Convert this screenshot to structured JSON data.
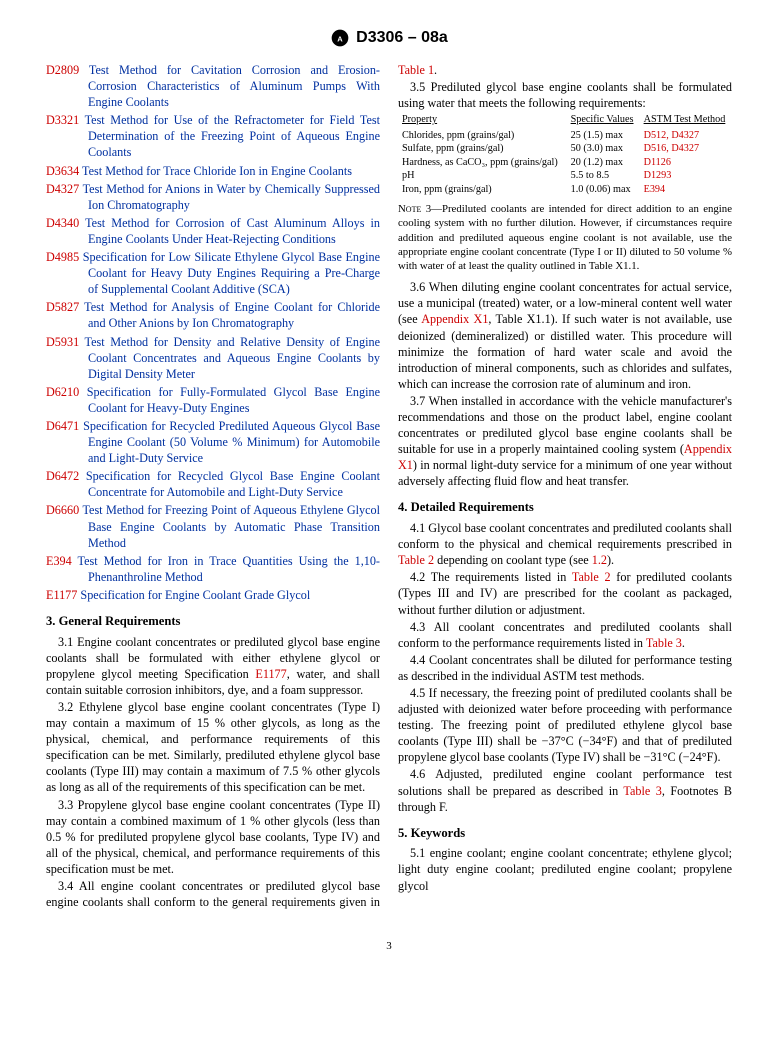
{
  "header": {
    "designation": "D3306 – 08a"
  },
  "refs": [
    {
      "code": "D2809",
      "title": "Test Method for Cavitation Corrosion and Erosion-Corrosion Characteristics of Aluminum Pumps With Engine Coolants"
    },
    {
      "code": "D3321",
      "title": "Test Method for Use of the Refractometer for Field Test Determination of the Freezing Point of Aqueous Engine Coolants"
    },
    {
      "code": "D3634",
      "title": "Test Method for Trace Chloride Ion in Engine Coolants"
    },
    {
      "code": "D4327",
      "title": "Test Method for Anions in Water by Chemically Suppressed Ion Chromatography"
    },
    {
      "code": "D4340",
      "title": "Test Method for Corrosion of Cast Aluminum Alloys in Engine Coolants Under Heat-Rejecting Conditions"
    },
    {
      "code": "D4985",
      "title": "Specification for Low Silicate Ethylene Glycol Base Engine Coolant for Heavy Duty Engines Requiring a Pre-Charge of Supplemental Coolant Additive (SCA)"
    },
    {
      "code": "D5827",
      "title": "Test Method for Analysis of Engine Coolant for Chloride and Other Anions by Ion Chromatography"
    },
    {
      "code": "D5931",
      "title": "Test Method for Density and Relative Density of Engine Coolant Concentrates and Aqueous Engine Coolants by Digital Density Meter"
    },
    {
      "code": "D6210",
      "title": "Specification for Fully-Formulated Glycol Base Engine Coolant for Heavy-Duty Engines"
    },
    {
      "code": "D6471",
      "title": "Specification for Recycled Prediluted Aqueous Glycol Base Engine Coolant (50 Volume % Minimum) for Automobile and Light-Duty Service"
    },
    {
      "code": "D6472",
      "title": "Specification for Recycled Glycol Base Engine Coolant Concentrate for Automobile and Light-Duty Service"
    },
    {
      "code": "D6660",
      "title": "Test Method for Freezing Point of Aqueous Ethylene Glycol Base Engine Coolants by Automatic Phase Transition Method"
    },
    {
      "code": "E394",
      "title": "Test Method for Iron in Trace Quantities Using the 1,10-Phenanthroline Method"
    },
    {
      "code": "E1177",
      "title": "Specification for Engine Coolant Grade Glycol"
    }
  ],
  "sections": {
    "s3": {
      "title": "3. General Requirements"
    },
    "s4": {
      "title": "4. Detailed Requirements"
    },
    "s5": {
      "title": "5. Keywords"
    }
  },
  "paras": {
    "p31a": "3.1 Engine coolant concentrates or prediluted glycol base engine coolants shall be formulated with either ethylene glycol or propylene glycol meeting Specification ",
    "p31b": ", water, and shall contain suitable corrosion inhibitors, dye, and a foam suppressor.",
    "e1177": "E1177",
    "p32": "3.2 Ethylene glycol base engine coolant concentrates (Type I) may contain a maximum of 15 % other glycols, as long as the physical, chemical, and performance requirements of this specification can be met. Similarly, prediluted ethylene glycol base coolants (Type III) may contain a maximum of 7.5 % other glycols as long as all of the requirements of this specification can be met.",
    "p33": "3.3 Propylene glycol base engine coolant concentrates (Type II) may contain a combined maximum of 1 % other glycols (less than 0.5 % for prediluted propylene glycol base coolants, Type IV) and all of the physical, chemical, and performance requirements of this specification must be met.",
    "p34a": "3.4 All engine coolant concentrates or prediluted glycol base engine coolants shall conform to the general requirements given in ",
    "t1": "Table 1",
    "dot": ".",
    "p35": "3.5 Prediluted glycol base engine coolants shall be formulated using water that meets the following requirements:",
    "note3": "Prediluted coolants are intended for direct addition to an engine cooling system with no further dilution. However, if circumstances require addition and prediluted aqueous engine coolant is not available, use the appropriate engine coolant concentrate (Type I or II) diluted to 50 volume % with water of at least the quality outlined in Table X1.1.",
    "note3label": "Note 3—",
    "p36a": "3.6 When diluting engine coolant concentrates for actual service, use a municipal (treated) water, or a low-mineral content well water (see ",
    "ax1": "Appendix X1",
    "p36b": ", Table X1.1). If such water is not available, use deionized (demineralized) or distilled water. This procedure will minimize the formation of hard water scale and avoid the introduction of mineral components, such as chlorides and sulfates, which can increase the corrosion rate of aluminum and iron.",
    "p37a": "3.7 When installed in accordance with the vehicle manufacturer's recommendations and those on the product label, engine coolant concentrates or prediluted glycol base engine coolants shall be suitable for use in a properly maintained cooling system (",
    "p37b": ") in normal light-duty service for a minimum of one year without adversely affecting fluid flow and heat transfer.",
    "p41a": "4.1 Glycol base coolant concentrates and prediluted coolants shall conform to the physical and chemical requirements prescribed in ",
    "t2": "Table 2",
    "p41b": " depending on coolant type (see ",
    "l12": "1.2",
    "p41c": ").",
    "p42a": "4.2 The requirements listed in ",
    "p42b": " for prediluted coolants (Types III and IV) are prescribed for the coolant as packaged, without further dilution or adjustment.",
    "p43a": "4.3 All coolant concentrates and prediluted coolants shall conform to the performance requirements listed in ",
    "t3": "Table 3",
    "p44": "4.4 Coolant concentrates shall be diluted for performance testing as described in the individual ASTM test methods.",
    "p45": "4.5 If necessary, the freezing point of prediluted coolants shall be adjusted with deionized water before proceeding with performance testing. The freezing point of prediluted ethylene glycol base coolants (Type III) shall be −37°C (−34°F) and that of prediluted propylene glycol base coolants (Type IV) shall be −31°C (−24°F).",
    "p46a": "4.6 Adjusted, prediluted engine coolant performance test solutions shall be prepared as described in ",
    "p46b": ", Footnotes B through F.",
    "p51": "5.1 engine coolant; engine coolant concentrate; ethylene glycol; light duty engine coolant; prediluted engine coolant; propylene glycol"
  },
  "water_table": {
    "headers": {
      "p": "Property",
      "v": "Specific Values",
      "m": "ASTM Test Method"
    },
    "rows": [
      {
        "p": "Chlorides, ppm (grains/gal)",
        "v": "25 (1.5) max",
        "m": "D512, D4327"
      },
      {
        "p": "Sulfate, ppm (grains/gal)",
        "v": "50 (3.0) max",
        "m": "D516, D4327"
      },
      {
        "p": "Hardness, as CaCO₃, ppm (grains/gal)",
        "v": "20 (1.2) max",
        "m": "D1126"
      },
      {
        "p": "pH",
        "v": "5.5 to 8.5",
        "m": "D1293"
      },
      {
        "p": "Iron, ppm (grains/gal)",
        "v": "1.0 (0.06) max",
        "m": "E394"
      }
    ]
  },
  "pagenum": "3"
}
